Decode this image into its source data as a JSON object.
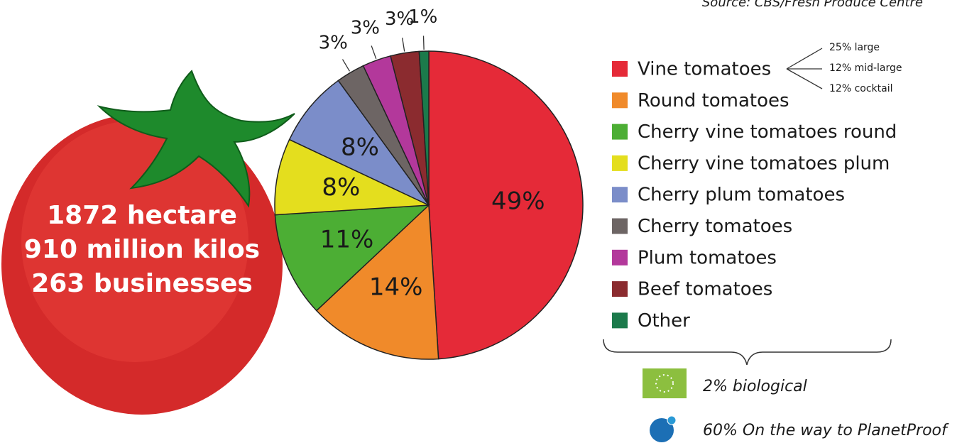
{
  "chart_data": {
    "type": "pie",
    "source": "Source: CBS/Fresh Produce Centre",
    "categories": [
      "Vine tomatoes",
      "Round tomatoes",
      "Cherry vine tomatoes round",
      "Cherry vine tomatoes plum",
      "Cherry plum tomatoes",
      "Cherry tomatoes",
      "Plum tomatoes",
      "Beef tomatoes",
      "Other"
    ],
    "values": [
      49,
      14,
      11,
      8,
      8,
      3,
      3,
      3,
      1
    ],
    "value_labels": [
      "49%",
      "14%",
      "11%",
      "8%",
      "8%",
      "3%",
      "3%",
      "3%",
      "1%"
    ],
    "colors": [
      "#e52a38",
      "#f08a2a",
      "#4cae34",
      "#e4de1e",
      "#7b8dc9",
      "#6d6564",
      "#b3389b",
      "#8b2b2f",
      "#1b7a4b"
    ],
    "stats": [
      "1872 hectare",
      "910 million kilos",
      "263 businesses"
    ],
    "vine_breakdown": [
      "25% large",
      "12% mid-large",
      "12% cocktail"
    ],
    "certifications": [
      "2% biological",
      "60% On the way to PlanetProof"
    ]
  }
}
